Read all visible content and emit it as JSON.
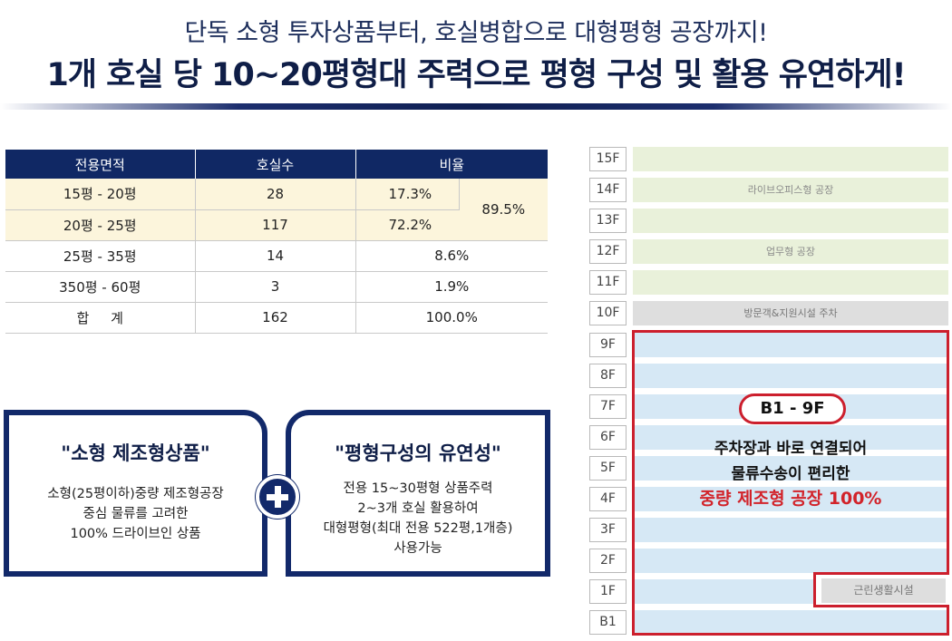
{
  "header": {
    "subtitle": "단독 소형 투자상품부터, 호실병합으로 대형평형 공장까지!",
    "headline": "1개 호실 당 10~20평형대 주력으로 평형 구성 및 활용 유연하게!"
  },
  "table": {
    "headers": [
      "전용면적",
      "호실수",
      "비율"
    ],
    "rows": [
      {
        "area": "15평 - 20평",
        "count": "28",
        "ratio": "17.3%"
      },
      {
        "area": "20평 - 25평",
        "count": "117",
        "ratio": "72.2%"
      },
      {
        "area": "25평 - 35평",
        "count": "14",
        "ratio": "8.6%"
      },
      {
        "area": "350평 - 60평",
        "count": "3",
        "ratio": "1.9%"
      },
      {
        "area": "합     계",
        "count": "162",
        "ratio": "100.0%"
      }
    ],
    "merged_ratio": "89.5%"
  },
  "feature_boxes": [
    {
      "title": "\"소형 제조형상품\"",
      "lines": [
        "소형(25평이하)중량 제조형공장",
        "중심 물류를 고려한",
        "100% 드라이브인 상품"
      ]
    },
    {
      "title": "\"평형구성의 유연성\"",
      "lines": [
        "전용 15~30평형 상품주력",
        "2~3개 호실 활용하여",
        "대형평형(최대 전용 522평,1개층)",
        "사용가능"
      ]
    }
  ],
  "building": {
    "floors": [
      "15F",
      "14F",
      "13F",
      "12F",
      "11F",
      "10F",
      "9F",
      "8F",
      "7F",
      "6F",
      "5F",
      "4F",
      "3F",
      "2F",
      "1F",
      "B1"
    ],
    "bars": {
      "livebox": "라이브오피스형 공장",
      "office": "업무형 공장",
      "parking": "방문객&지원시설 주차",
      "retail": "근린생활시설"
    },
    "badge": "B1 - 9F",
    "desc_line1": "주차장과 바로 연결되어",
    "desc_line2": "물류수송이 편리한",
    "desc_line3": "중량 제조형 공장 100%"
  },
  "colors": {
    "navy": "#102864",
    "red": "#cc1f2d",
    "highlight": "#fcf5dc",
    "green_bar": "#e9f1da",
    "blue_bar": "#d6e8f5",
    "gray_bar": "#dedede"
  }
}
